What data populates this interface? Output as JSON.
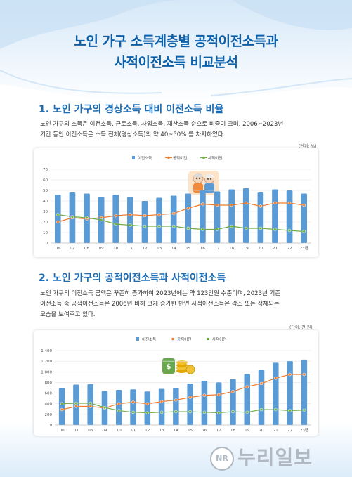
{
  "header": {
    "title_line1": "노인 가구 소득계층별 공적이전소득과",
    "title_line2": "사적이전소득 비교분석"
  },
  "section1": {
    "title": "1. 노인 가구의 경상소득 대비 이전소득 비율",
    "text_line1": "노인 가구의 소득은 이전소득, 근로소득, 사업소득, 재산소득 순으로 비중이 크며, 2006~2023년",
    "text_line2": "기간 동안 이전소득은 소득 전체(경상소득)의 약 40~50% 를 차지하였다.",
    "unit": "(단위: %)"
  },
  "section2": {
    "title": "2. 노인 가구의 공적이전소득과 사적이전소득",
    "text_line1": "노인 가구의 이전소득 금액은 꾸준히 증가하여 2023년에는 약 123만원 수준이며, 2023년 기준",
    "text_line2": "이전소득 중 공적이전소득은 2006년 비해 크게 증가한 반면 사적이전소득은 감소 또는 정체되는",
    "text_line3": "모습을 보여주고 있다.",
    "unit": "(단위: 천 원)"
  },
  "watermark": {
    "logo": "NR",
    "text": "누리일보"
  },
  "colors": {
    "bar": "#5b9bd5",
    "public": "#ed7d31",
    "private": "#70ad47",
    "title": "#0d5fa8"
  },
  "chart_data": [
    {
      "type": "bar",
      "categories": [
        "06",
        "07",
        "08",
        "09",
        "10",
        "11",
        "12",
        "13",
        "14",
        "15",
        "16",
        "17",
        "18",
        "19",
        "20",
        "21",
        "22",
        "23년"
      ],
      "ylim": [
        0,
        70
      ],
      "yticks": [
        0,
        10,
        20,
        30,
        40,
        50,
        60,
        70
      ],
      "legend_position": "top-center",
      "series": [
        {
          "name": "이전소득",
          "kind": "bar",
          "values": [
            46,
            48,
            47,
            44,
            46,
            44,
            40,
            43,
            45,
            47,
            50,
            49,
            51,
            52,
            48,
            51,
            50,
            47
          ]
        },
        {
          "name": "공적이전",
          "kind": "line",
          "values": [
            20,
            24,
            23,
            24,
            26,
            27,
            26,
            27,
            28,
            33,
            37,
            36,
            36,
            38,
            35,
            38,
            38,
            36
          ]
        },
        {
          "name": "사적이전",
          "kind": "line",
          "values": [
            27,
            25,
            24,
            22,
            18,
            17,
            16,
            16,
            16,
            14,
            13,
            13,
            16,
            14,
            14,
            13,
            12,
            11
          ]
        }
      ]
    },
    {
      "type": "bar",
      "categories": [
        "06",
        "07",
        "08",
        "09",
        "10",
        "11",
        "12",
        "13",
        "14",
        "15",
        "16",
        "17",
        "18",
        "19",
        "20",
        "21",
        "22",
        "23년"
      ],
      "ylim": [
        0,
        1400
      ],
      "yticks": [
        0,
        200,
        400,
        600,
        800,
        1000,
        1200,
        1400
      ],
      "legend_position": "top-center",
      "series": [
        {
          "name": "이전소득",
          "kind": "bar",
          "values": [
            700,
            760,
            770,
            640,
            660,
            670,
            630,
            680,
            700,
            780,
            830,
            800,
            860,
            960,
            1040,
            1170,
            1200,
            1230
          ]
        },
        {
          "name": "공적이전",
          "kind": "line",
          "values": [
            290,
            350,
            350,
            320,
            400,
            430,
            400,
            440,
            470,
            520,
            560,
            570,
            630,
            720,
            780,
            880,
            950,
            950
          ]
        },
        {
          "name": "사적이전",
          "kind": "line",
          "values": [
            400,
            410,
            410,
            330,
            270,
            240,
            230,
            240,
            250,
            250,
            240,
            230,
            250,
            240,
            290,
            290,
            270,
            280
          ]
        }
      ]
    }
  ]
}
